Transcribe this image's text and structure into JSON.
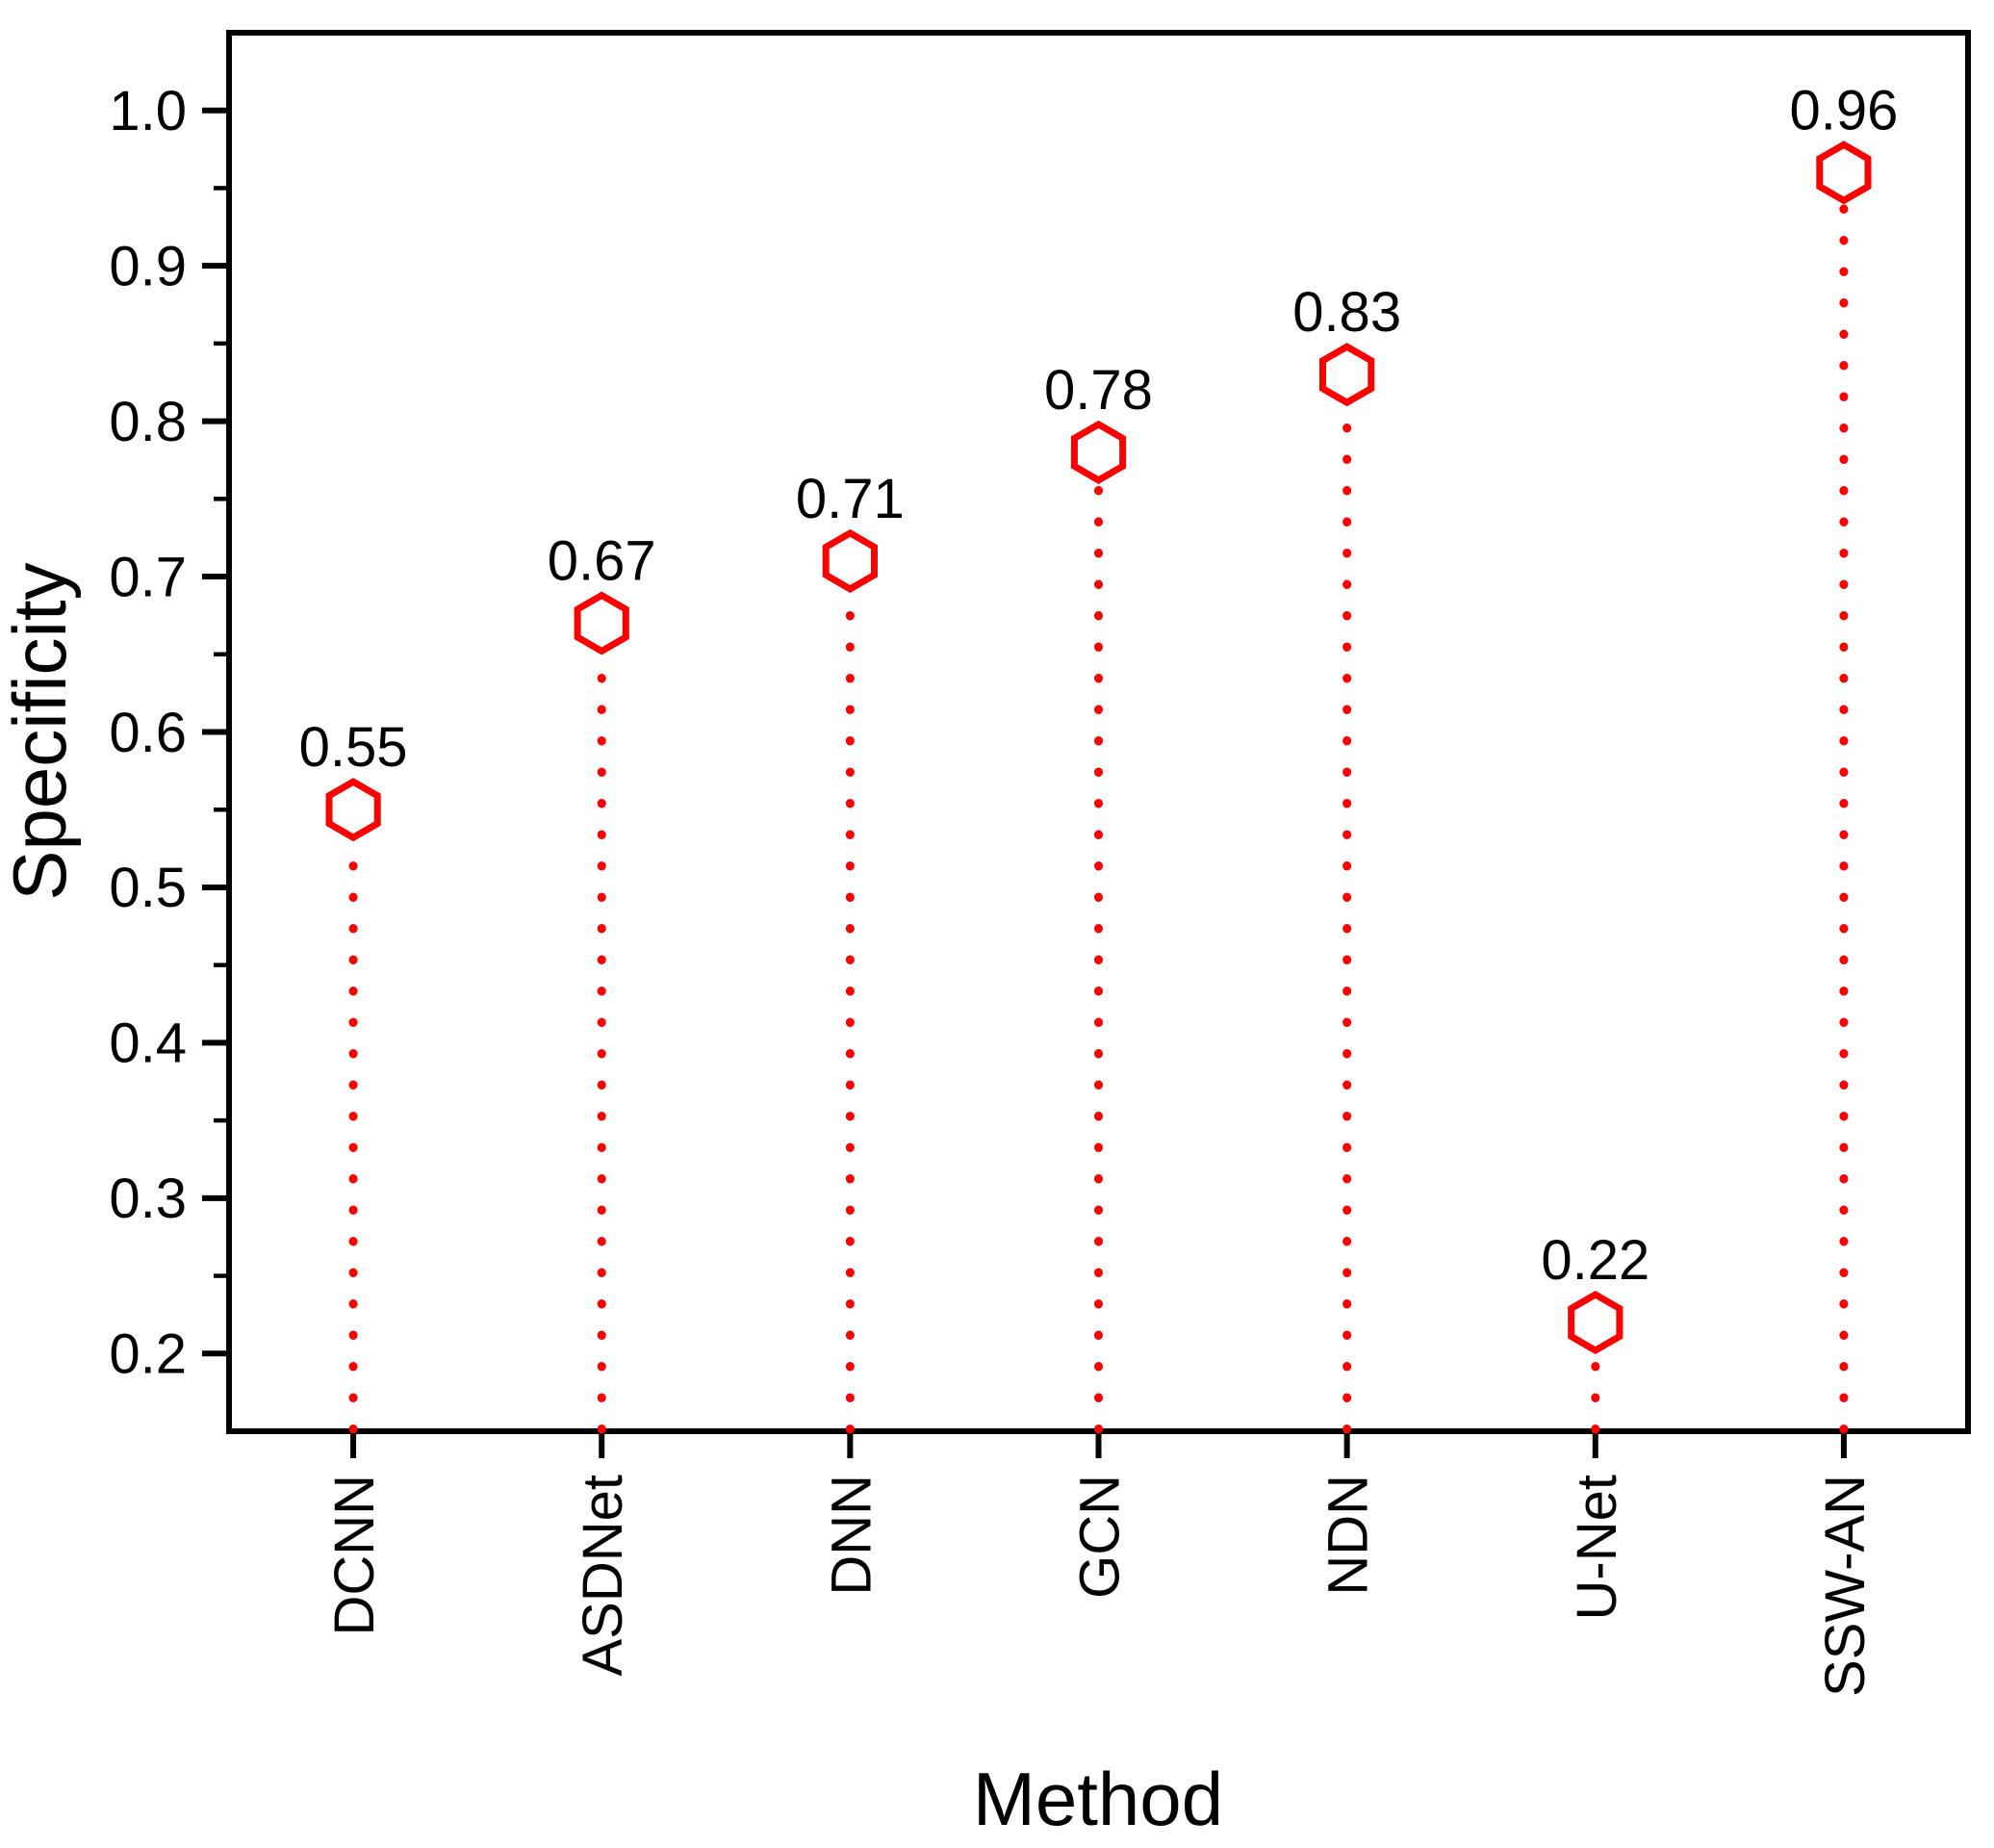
{
  "chart_data": {
    "type": "scatter",
    "variant": "lollipop-stem",
    "title": "",
    "xlabel": "Method",
    "ylabel": "Specificity",
    "categories": [
      "DCNN",
      "ASDNet",
      "DNN",
      "GCN",
      "NDN",
      "U-Net",
      "SSW-AN"
    ],
    "values": [
      0.55,
      0.67,
      0.71,
      0.78,
      0.83,
      0.22,
      0.96
    ],
    "value_labels": [
      "0.55",
      "0.67",
      "0.71",
      "0.78",
      "0.83",
      "0.22",
      "0.96"
    ],
    "ylim": [
      0.15,
      1.05
    ],
    "y_major_ticks": [
      0.2,
      0.3,
      0.4,
      0.5,
      0.6,
      0.7,
      0.8,
      0.9,
      1.0
    ],
    "y_tick_labels": [
      "0.2",
      "0.3",
      "0.4",
      "0.5",
      "0.6",
      "0.7",
      "0.8",
      "0.9",
      "1.0"
    ],
    "y_minor_ticks": [
      0.25,
      0.35,
      0.45,
      0.55,
      0.65,
      0.75,
      0.85,
      0.95
    ],
    "grid": "off",
    "legend": "none",
    "frame": "box",
    "marker_shape": "open-hexagon",
    "marker_color": "#FF0000",
    "marker_fill": "#FFFFFF",
    "stem_style": "dotted",
    "stem_color": "#FF0000",
    "axis_color": "#000000",
    "label_color": "#000000",
    "background_color": "#FFFFFF"
  }
}
